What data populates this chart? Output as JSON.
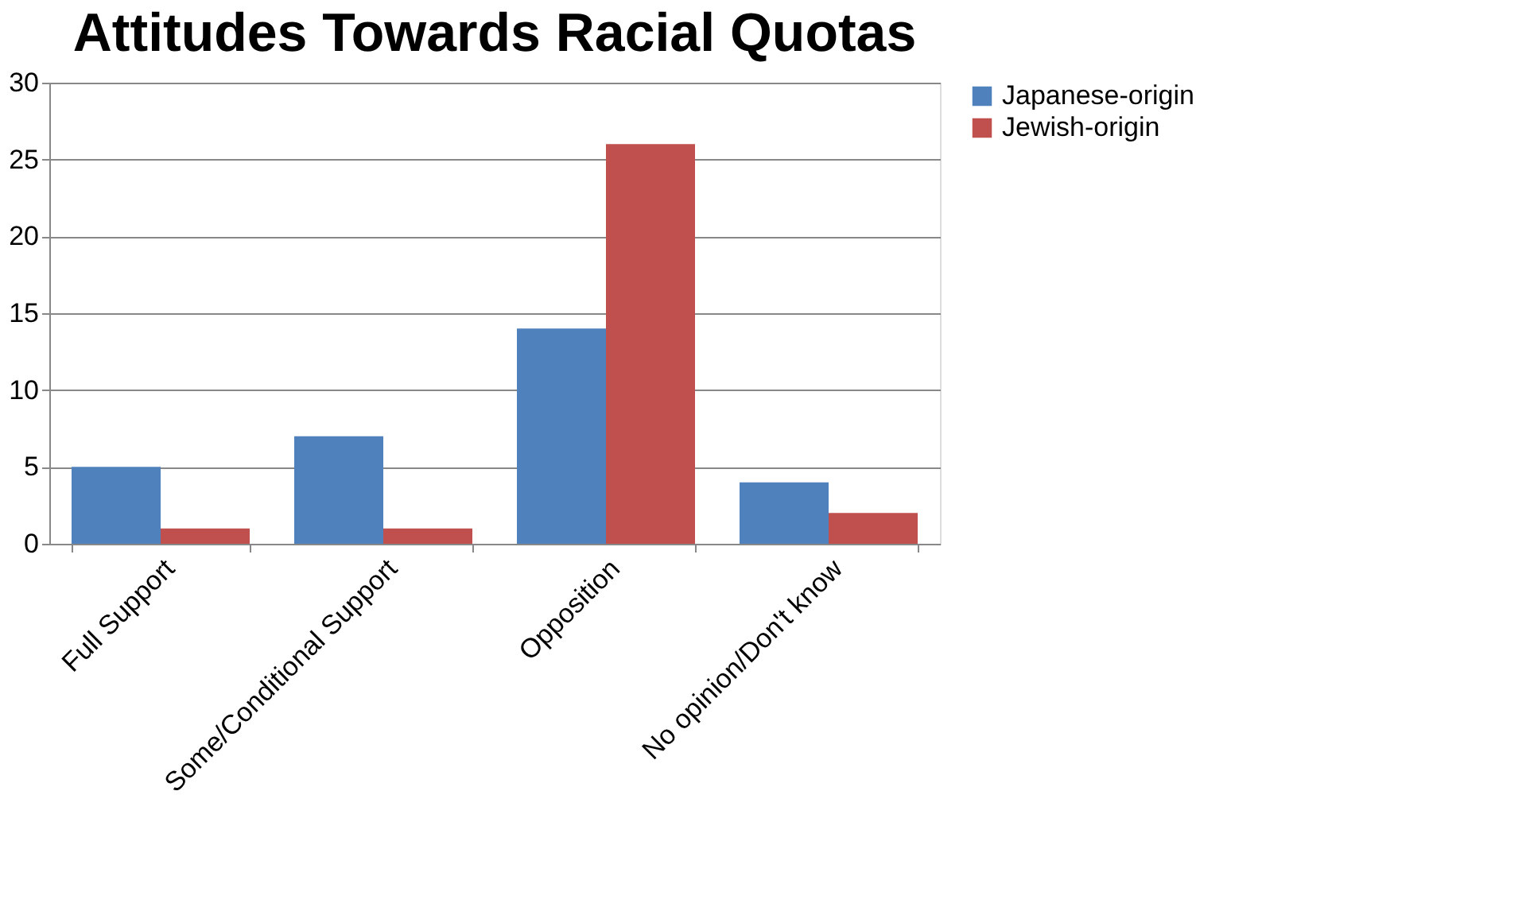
{
  "chart_data": {
    "type": "bar",
    "title": "Attitudes Towards Racial Quotas",
    "categories": [
      "Full Support",
      "Some/Conditional Support",
      "Opposition",
      "No opinion/Don't know"
    ],
    "series": [
      {
        "name": "Japanese-origin",
        "color": "#4f81bd",
        "values": [
          5,
          7,
          14,
          4
        ]
      },
      {
        "name": "Jewish-origin",
        "color": "#c0504d",
        "values": [
          1,
          1,
          26,
          2
        ]
      }
    ],
    "ylim": [
      0,
      30
    ],
    "yticks": [
      0,
      5,
      10,
      15,
      20,
      25,
      30
    ],
    "grid": "y",
    "legend": "right"
  }
}
